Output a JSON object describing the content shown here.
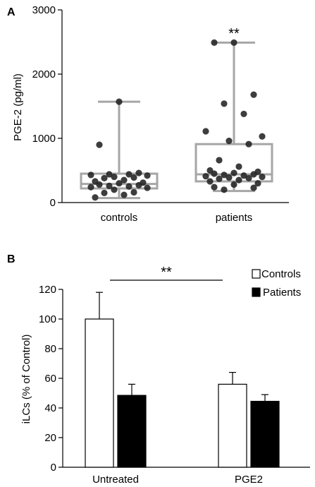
{
  "chart_data": [
    {
      "panel": "A",
      "type": "scatter",
      "subtype": "boxplot-with-points",
      "ylabel": "PGE-2 (pg/ml)",
      "ylim": [
        0,
        3000
      ],
      "yticks": [
        "0",
        "1000",
        "2000",
        "3000"
      ],
      "categories": [
        "controls",
        "patients"
      ],
      "significance": "**",
      "groups": [
        {
          "name": "controls",
          "box": {
            "whisker_low": 70,
            "q1": 220,
            "median": 290,
            "q3": 450,
            "whisker_high": 1570
          },
          "points": [
            1570,
            900,
            460,
            440,
            440,
            430,
            420,
            400,
            390,
            380,
            350,
            330,
            310,
            300,
            280,
            270,
            260,
            250,
            240,
            230,
            200,
            160,
            150,
            120,
            80
          ]
        },
        {
          "name": "patients",
          "box": {
            "whisker_low": 180,
            "q1": 330,
            "median": 440,
            "q3": 910,
            "whisker_high": 2490
          },
          "points": [
            2490,
            2490,
            1680,
            1540,
            1380,
            1110,
            1030,
            960,
            910,
            660,
            560,
            500,
            480,
            460,
            450,
            440,
            430,
            420,
            410,
            400,
            390,
            380,
            370,
            350,
            330,
            300,
            280,
            240,
            230,
            200
          ]
        }
      ],
      "colors": {
        "box": "#a6a6a6",
        "point": "#222222"
      }
    },
    {
      "panel": "B",
      "type": "bar",
      "ylabel": "iLCs (% of Control)",
      "ylim": [
        0,
        120
      ],
      "yticks": [
        "0",
        "20",
        "40",
        "60",
        "80",
        "100",
        "120"
      ],
      "categories": [
        "Untreated",
        "PGE2"
      ],
      "series": [
        {
          "name": "Controls",
          "values": [
            100,
            56
          ],
          "errors": [
            18,
            8
          ],
          "color": "#ffffff"
        },
        {
          "name": "Patients",
          "values": [
            48.5,
            44.5
          ],
          "errors": [
            7.5,
            4.5
          ],
          "color": "#000000"
        }
      ],
      "significance": "**",
      "legend": "top-right"
    }
  ]
}
